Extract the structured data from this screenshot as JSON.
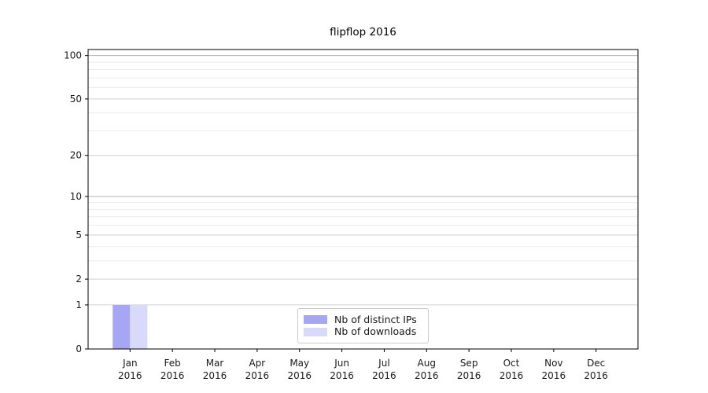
{
  "figure": {
    "title": "flipflop 2016"
  },
  "chart_data": {
    "type": "bar",
    "title": "flipflop 2016",
    "xlabel": "",
    "ylabel": "",
    "yscale": "log1p",
    "ylim": [
      0,
      110
    ],
    "grid": true,
    "y_major_ticks": [
      0,
      1,
      2,
      5,
      10,
      20,
      50,
      100
    ],
    "y_minor_ticks": [
      3,
      4,
      6,
      7,
      8,
      9,
      30,
      40,
      60,
      70,
      80,
      90
    ],
    "y_emphasized_gridlines": [
      10,
      100
    ],
    "x_tick_labels": [
      {
        "month": "Jan",
        "year": "2016"
      },
      {
        "month": "Feb",
        "year": "2016"
      },
      {
        "month": "Mar",
        "year": "2016"
      },
      {
        "month": "Apr",
        "year": "2016"
      },
      {
        "month": "May",
        "year": "2016"
      },
      {
        "month": "Jun",
        "year": "2016"
      },
      {
        "month": "Jul",
        "year": "2016"
      },
      {
        "month": "Aug",
        "year": "2016"
      },
      {
        "month": "Sep",
        "year": "2016"
      },
      {
        "month": "Oct",
        "year": "2016"
      },
      {
        "month": "Nov",
        "year": "2016"
      },
      {
        "month": "Dec",
        "year": "2016"
      }
    ],
    "series": [
      {
        "name": "Nb of distinct IPs",
        "color": "#a6a6f5",
        "values": [
          1,
          0,
          0,
          0,
          0,
          0,
          0,
          0,
          0,
          0,
          0,
          0
        ]
      },
      {
        "name": "Nb of downloads",
        "color": "#d9d9fa",
        "values": [
          1,
          0,
          0,
          0,
          0,
          0,
          0,
          0,
          0,
          0,
          0,
          0
        ]
      }
    ],
    "legend_position": "lower center"
  },
  "colors": {
    "spine": "#000000",
    "grid_minor": "#ebebeb",
    "grid_major": "#d2d2d2",
    "grid_emphasis": "#b0b0b0",
    "bar_distinct_ips": "#a6a6f5",
    "bar_downloads": "#d9d9fa",
    "legend_border": "#cccccc",
    "text": "#1a1a1a"
  }
}
